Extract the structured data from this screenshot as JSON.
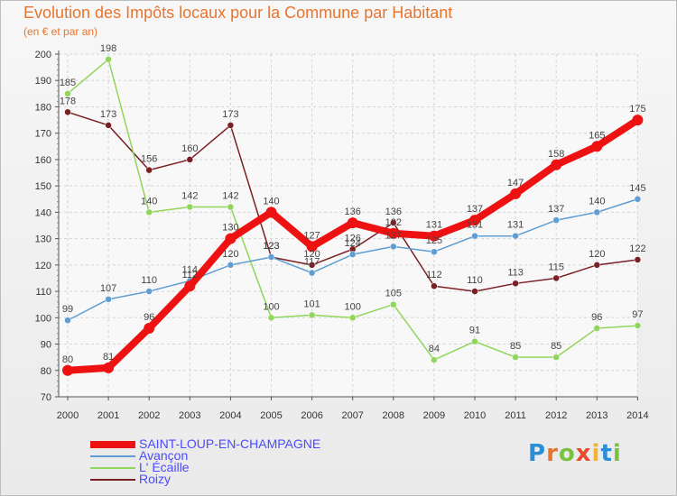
{
  "title": "Evolution des Impôts locaux pour la Commune par Habitant",
  "subtitle": "(en € et par an)",
  "logo": {
    "letters": [
      {
        "ch": "P",
        "color": "#2a8fd6"
      },
      {
        "ch": "r",
        "color": "#e8752e"
      },
      {
        "ch": "o",
        "color": "#7cc242"
      },
      {
        "ch": "x",
        "color": "#e84a2e"
      },
      {
        "ch": "i",
        "color": "#f2b233"
      },
      {
        "ch": "t",
        "color": "#2a8fd6"
      },
      {
        "ch": "i",
        "color": "#7cc242"
      }
    ]
  },
  "chart_data": {
    "type": "line",
    "title": "Evolution des Impôts locaux pour la Commune par Habitant",
    "ylabel": "(en € et par an)",
    "xlabel": "",
    "categories": [
      "2000",
      "2001",
      "2002",
      "2003",
      "2004",
      "2005",
      "2006",
      "2007",
      "2008",
      "2009",
      "2010",
      "2011",
      "2012",
      "2013",
      "2014"
    ],
    "ylim": [
      70,
      200
    ],
    "yticks": [
      70,
      80,
      90,
      100,
      110,
      120,
      130,
      140,
      150,
      160,
      170,
      180,
      190,
      200
    ],
    "grid": true,
    "legend_position": "bottom-left",
    "series": [
      {
        "name": "Roizy",
        "color": "#7a1f24",
        "values": [
          178,
          173,
          156,
          160,
          173,
          123,
          120,
          126,
          136,
          112,
          110,
          113,
          115,
          120,
          122
        ]
      },
      {
        "name": "L' Écaille",
        "color": "#8fd65a",
        "values": [
          185,
          198,
          140,
          142,
          142,
          100,
          101,
          100,
          105,
          84,
          91,
          85,
          85,
          96,
          97
        ]
      },
      {
        "name": "Avançon",
        "color": "#5f9dd2",
        "values": [
          99,
          107,
          110,
          114,
          120,
          123,
          117,
          124,
          127,
          125,
          131,
          131,
          137,
          140,
          145
        ]
      },
      {
        "name": "SAINT-LOUP-EN-CHAMPAGNE",
        "color": "#ee1111",
        "values": [
          80,
          81,
          96,
          112,
          130,
          140,
          127,
          136,
          132,
          131,
          137,
          147,
          158,
          165,
          175
        ]
      }
    ],
    "legend": [
      "SAINT-LOUP-EN-CHAMPAGNE",
      "Avançon",
      "L' Écaille",
      "Roizy"
    ]
  }
}
